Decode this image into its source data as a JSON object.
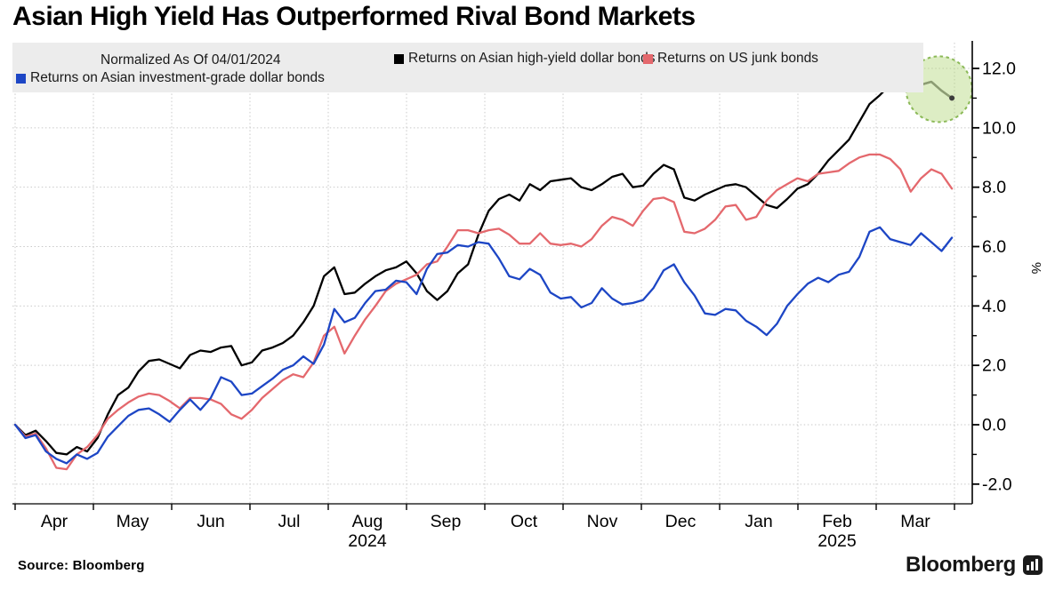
{
  "title": "Asian High Yield Has Outperformed Rival Bond Markets",
  "legend": {
    "note": "Normalized As Of 04/01/2024",
    "items": [
      {
        "label": "Returns on Asian high-yield dollar bonds",
        "color": "#000000"
      },
      {
        "label": "Returns on US junk bonds",
        "color": "#e4686d"
      },
      {
        "label": "Returns on Asian investment-grade dollar bonds",
        "color": "#1d46c5"
      }
    ]
  },
  "source_label": "Source:  Bloomberg",
  "brand": {
    "name": "Bloomberg",
    "icon": "bloomberg-logo-icon"
  },
  "y_axis": {
    "unit": "%",
    "major_tick_values": [
      12,
      10,
      8,
      6,
      4,
      2,
      0,
      -2
    ],
    "major_tick_labels": [
      "12.0",
      "10.0",
      "8.0",
      "6.0",
      "4.0",
      "2.0",
      "0.0",
      "-2.0"
    ],
    "minor_tick_values": [
      11,
      9,
      7,
      5,
      3,
      1,
      -1
    ]
  },
  "x_axis": {
    "month_labels": [
      "Apr",
      "May",
      "Jun",
      "Jul",
      "Aug",
      "Sep",
      "Oct",
      "Nov",
      "Dec",
      "Jan",
      "Feb",
      "Mar"
    ],
    "year_labels": [
      {
        "text": "2024",
        "month_index": 4
      },
      {
        "text": "2025",
        "month_index": 10
      }
    ]
  },
  "highlight": {
    "shape": "dashed-circle",
    "stroke_color": "#8bb957",
    "fill_color": "#b3d67d",
    "center_date": "2025-03-26",
    "center_value": 11.3
  },
  "chart_data": {
    "type": "line",
    "title": "Asian High Yield Has Outperformed Rival Bond Markets",
    "xlabel": "",
    "ylabel": "%",
    "ylim": [
      -2.8,
      12.9
    ],
    "grid": "dotted, horizontal every 2 units, vertical every month",
    "legend_position": "top band",
    "x": {
      "start": "2024-04-01",
      "step_days": 4,
      "points": 92,
      "end": "2025-03-31"
    },
    "series": [
      {
        "name": "Returns on Asian high-yield dollar bonds",
        "color": "#000000",
        "values": [
          0.0,
          -0.35,
          -0.2,
          -0.55,
          -0.95,
          -1.0,
          -0.75,
          -0.9,
          -0.45,
          0.35,
          1.0,
          1.25,
          1.8,
          2.15,
          2.2,
          2.05,
          1.9,
          2.35,
          2.5,
          2.45,
          2.6,
          2.65,
          2.0,
          2.1,
          2.5,
          2.6,
          2.75,
          3.0,
          3.45,
          4.0,
          5.0,
          5.3,
          4.4,
          4.45,
          4.75,
          5.0,
          5.2,
          5.3,
          5.5,
          5.1,
          4.5,
          4.2,
          4.5,
          5.1,
          5.4,
          6.4,
          7.2,
          7.6,
          7.75,
          7.55,
          8.1,
          7.9,
          8.2,
          8.25,
          8.3,
          8.0,
          7.9,
          8.1,
          8.35,
          8.45,
          8.0,
          8.05,
          8.45,
          8.75,
          8.6,
          7.65,
          7.55,
          7.75,
          7.9,
          8.05,
          8.1,
          8.0,
          7.7,
          7.4,
          7.3,
          7.6,
          7.95,
          8.1,
          8.45,
          8.9,
          9.25,
          9.6,
          10.2,
          10.8,
          11.1,
          11.45,
          11.5,
          11.5,
          11.45,
          11.55,
          11.25,
          11.0
        ]
      },
      {
        "name": "Returns on US junk bonds",
        "color": "#e4686d",
        "values": [
          0.0,
          -0.4,
          -0.3,
          -0.8,
          -1.45,
          -1.5,
          -1.0,
          -0.75,
          -0.35,
          0.2,
          0.5,
          0.75,
          0.95,
          1.05,
          1.0,
          0.8,
          0.55,
          0.9,
          0.9,
          0.85,
          0.7,
          0.35,
          0.2,
          0.5,
          0.9,
          1.2,
          1.5,
          1.7,
          1.6,
          2.1,
          3.0,
          3.3,
          2.4,
          3.0,
          3.55,
          4.0,
          4.5,
          4.75,
          4.9,
          5.05,
          5.4,
          5.5,
          6.0,
          6.55,
          6.55,
          6.45,
          6.55,
          6.6,
          6.4,
          6.1,
          6.1,
          6.45,
          6.1,
          6.05,
          6.1,
          6.0,
          6.25,
          6.7,
          7.0,
          6.9,
          6.7,
          7.2,
          7.6,
          7.65,
          7.5,
          6.5,
          6.45,
          6.6,
          6.9,
          7.35,
          7.4,
          6.9,
          7.0,
          7.55,
          7.9,
          8.1,
          8.3,
          8.2,
          8.45,
          8.5,
          8.55,
          8.8,
          9.0,
          9.1,
          9.1,
          8.95,
          8.6,
          7.85,
          8.3,
          8.6,
          8.45,
          7.95
        ]
      },
      {
        "name": "Returns on Asian investment-grade dollar bonds",
        "color": "#1d46c5",
        "values": [
          0.0,
          -0.45,
          -0.35,
          -0.9,
          -1.15,
          -1.3,
          -1.0,
          -1.15,
          -0.95,
          -0.4,
          -0.05,
          0.3,
          0.5,
          0.55,
          0.35,
          0.1,
          0.5,
          0.85,
          0.5,
          0.9,
          1.6,
          1.45,
          1.0,
          1.05,
          1.3,
          1.55,
          1.85,
          2.0,
          2.3,
          2.05,
          2.7,
          3.9,
          3.45,
          3.6,
          4.1,
          4.5,
          4.55,
          4.85,
          4.8,
          4.4,
          5.25,
          5.75,
          5.8,
          6.05,
          6.0,
          6.15,
          6.1,
          5.6,
          5.0,
          4.9,
          5.25,
          5.05,
          4.45,
          4.25,
          4.3,
          3.95,
          4.1,
          4.6,
          4.25,
          4.05,
          4.1,
          4.2,
          4.6,
          5.2,
          5.4,
          4.8,
          4.35,
          3.75,
          3.7,
          3.9,
          3.85,
          3.5,
          3.3,
          3.02,
          3.4,
          4.0,
          4.4,
          4.75,
          4.95,
          4.8,
          5.05,
          5.15,
          5.65,
          6.5,
          6.65,
          6.25,
          6.15,
          6.05,
          6.45,
          6.15,
          5.85,
          6.3
        ]
      }
    ]
  }
}
